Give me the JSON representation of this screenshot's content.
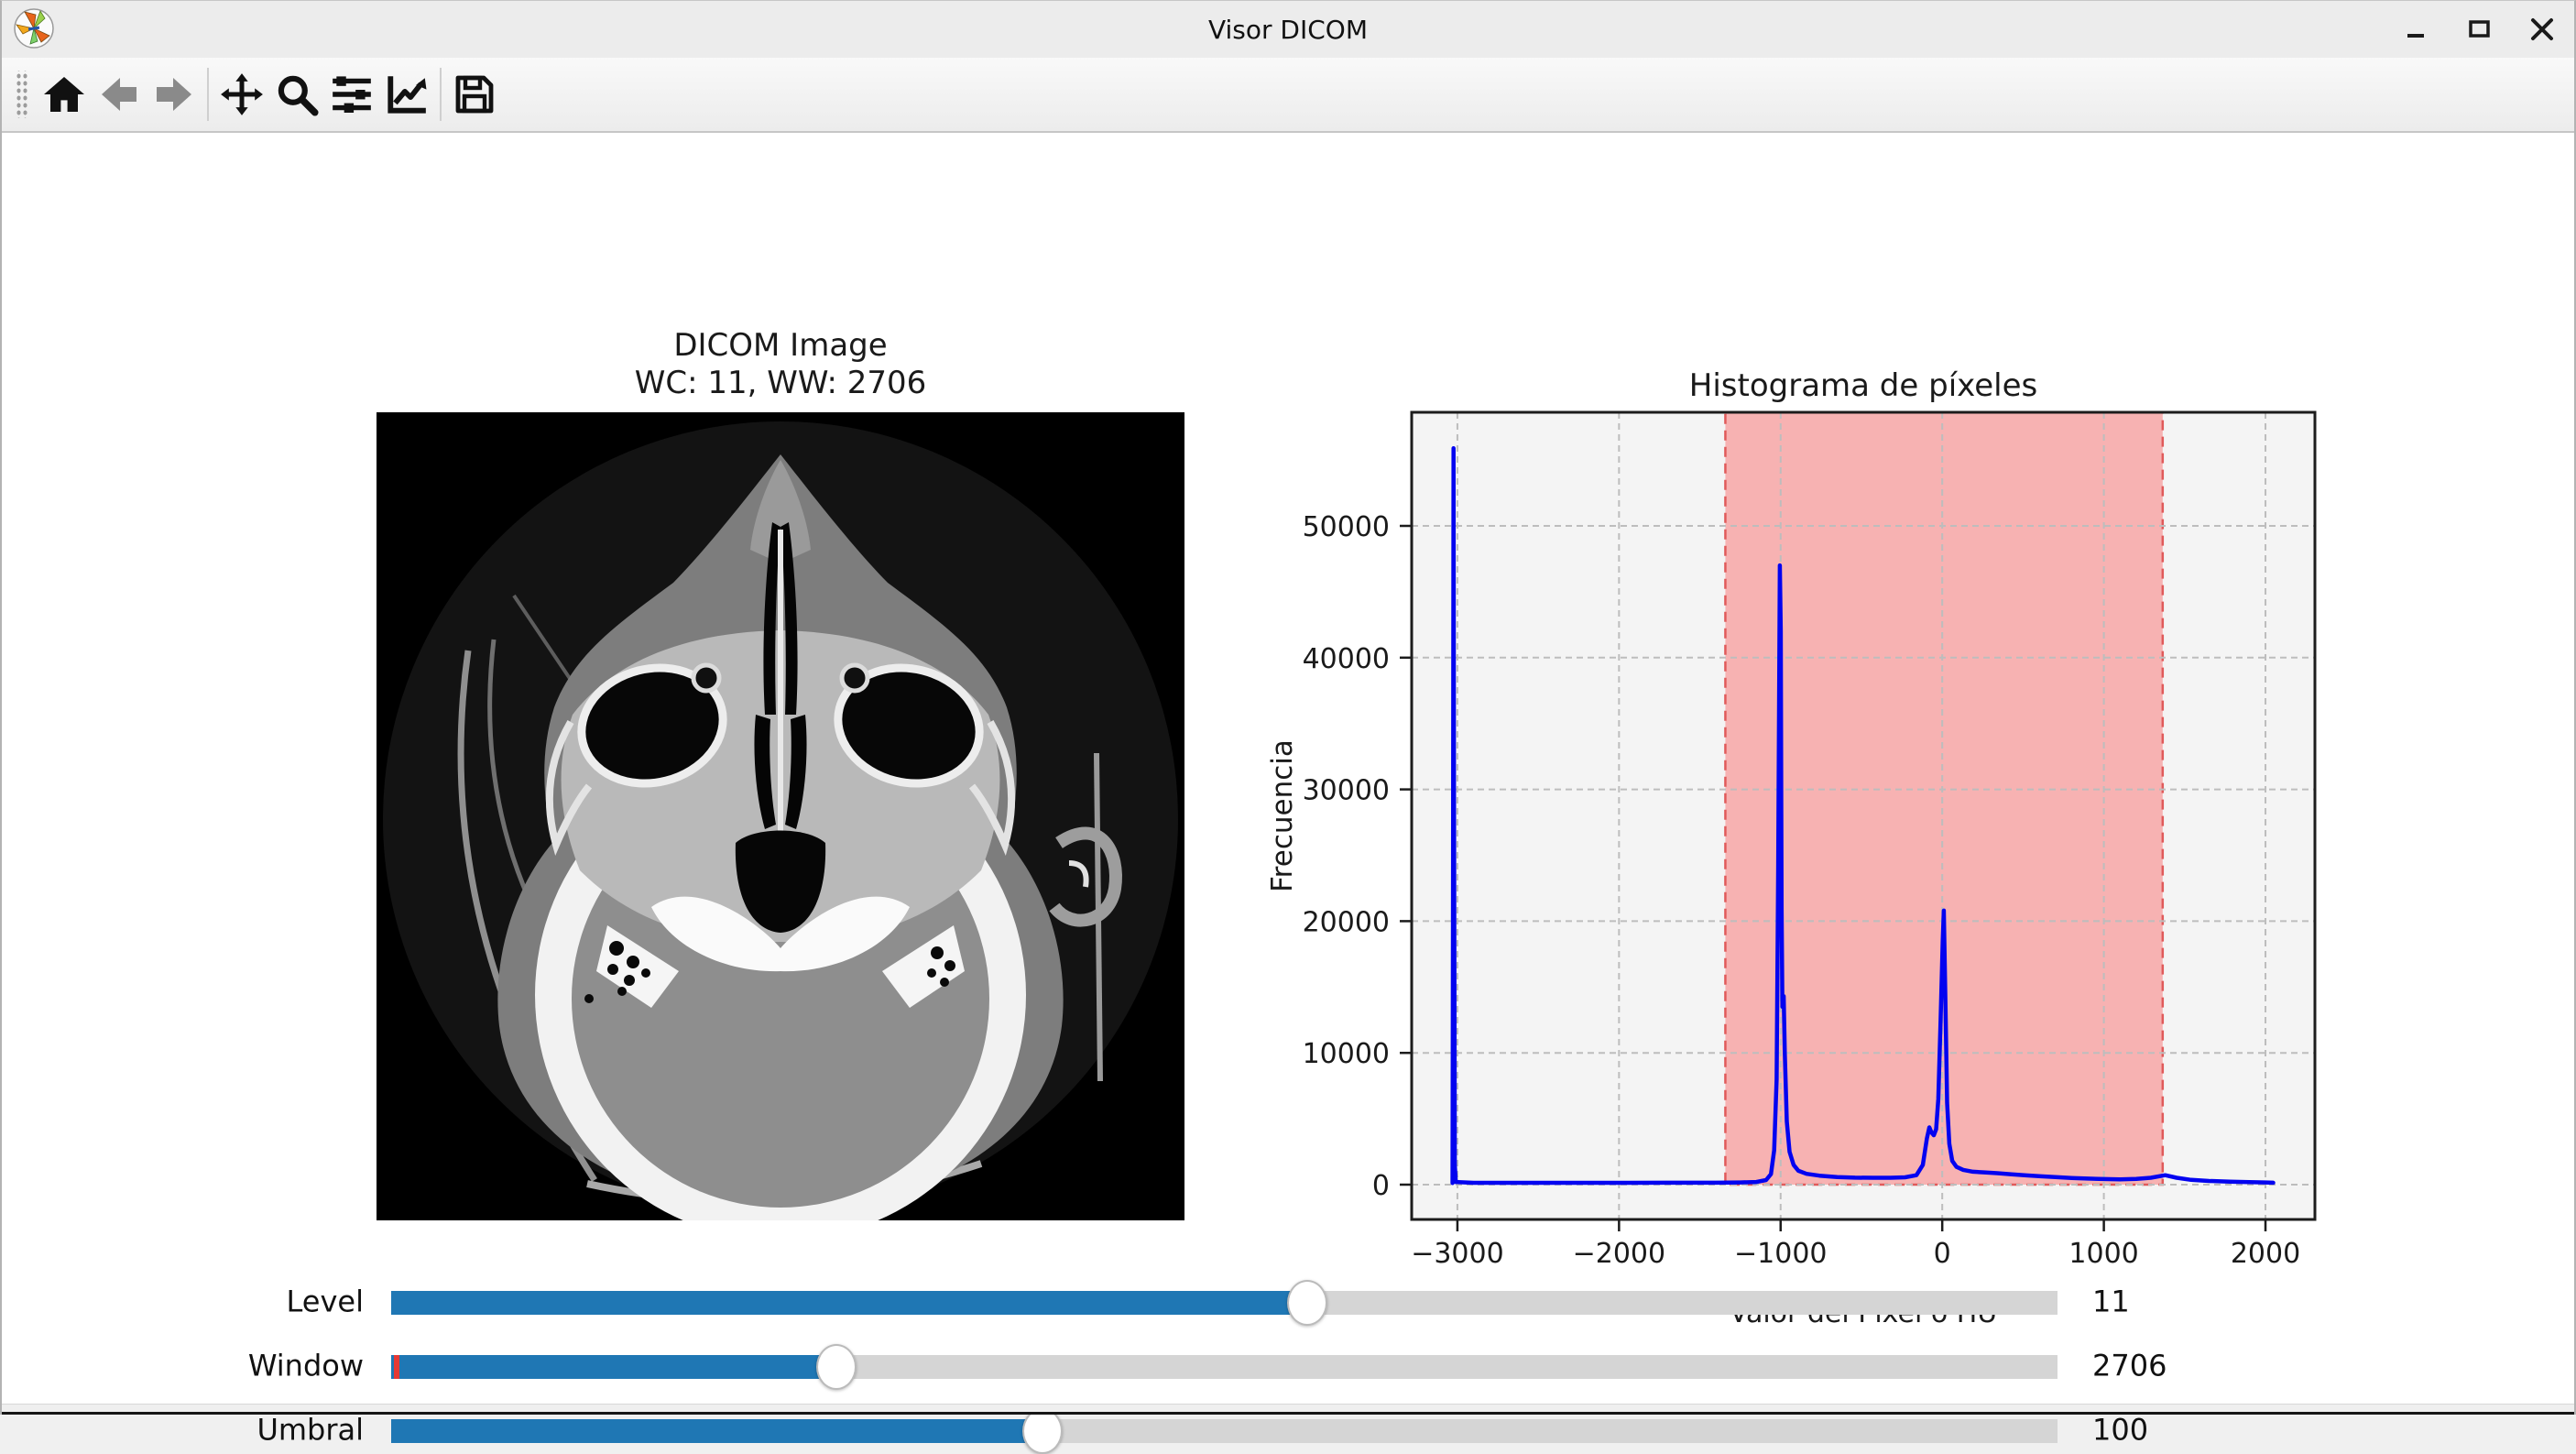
{
  "window": {
    "title": "Visor DICOM",
    "controls": [
      "minimize",
      "maximize",
      "close"
    ]
  },
  "toolbar": {
    "buttons": [
      {
        "name": "home",
        "enabled": true
      },
      {
        "name": "back",
        "enabled": false
      },
      {
        "name": "forward",
        "enabled": false
      },
      {
        "name": "pan",
        "enabled": true
      },
      {
        "name": "zoom",
        "enabled": true
      },
      {
        "name": "configure-subplots",
        "enabled": true
      },
      {
        "name": "edit-axes",
        "enabled": true
      },
      {
        "name": "save",
        "enabled": true
      }
    ]
  },
  "dicom_panel": {
    "title_line1": "DICOM Image",
    "title_line2": "WC: 11, WW: 2706"
  },
  "chart_data": {
    "type": "line",
    "title": "Histograma de píxeles",
    "xlabel": "Valor del Píxel o HU",
    "ylabel": "Frecuencia",
    "xlim": [
      -3283,
      2306
    ],
    "ylim": [
      -2642,
      58623
    ],
    "xticks": [
      -3000,
      -2000,
      -1000,
      0,
      1000,
      2000
    ],
    "xtick_labels": [
      "−3000",
      "−2000",
      "−1000",
      "0",
      "1000",
      "2000"
    ],
    "yticks": [
      0,
      10000,
      20000,
      30000,
      40000,
      50000
    ],
    "ytick_labels": [
      "0",
      "10000",
      "20000",
      "30000",
      "40000",
      "50000"
    ],
    "grid": true,
    "legend": "none",
    "line_color": "#0303f0",
    "plot_bg": "#f4f4f4",
    "highlight_span": {
      "x_from": -1342,
      "x_to": 1364,
      "y_from": 0,
      "fill": "rgba(255,40,40,0.32)",
      "edge": "#e05a5a"
    },
    "series": [
      {
        "name": "pixel_histogram",
        "points": [
          [
            -3030,
            120
          ],
          [
            -3027,
            25000
          ],
          [
            -3024,
            55900
          ],
          [
            -3021,
            30000
          ],
          [
            -3016,
            1500
          ],
          [
            -3010,
            200
          ],
          [
            -2900,
            140
          ],
          [
            -2600,
            140
          ],
          [
            -2300,
            140
          ],
          [
            -2000,
            140
          ],
          [
            -1700,
            145
          ],
          [
            -1400,
            150
          ],
          [
            -1250,
            165
          ],
          [
            -1150,
            200
          ],
          [
            -1090,
            350
          ],
          [
            -1060,
            800
          ],
          [
            -1040,
            2600
          ],
          [
            -1025,
            8000
          ],
          [
            -1015,
            24000
          ],
          [
            -1005,
            47000
          ],
          [
            -999,
            42000
          ],
          [
            -994,
            21000
          ],
          [
            -989,
            13500
          ],
          [
            -981,
            14300
          ],
          [
            -974,
            10000
          ],
          [
            -962,
            4800
          ],
          [
            -945,
            2500
          ],
          [
            -920,
            1500
          ],
          [
            -890,
            1050
          ],
          [
            -840,
            820
          ],
          [
            -760,
            680
          ],
          [
            -650,
            580
          ],
          [
            -540,
            530
          ],
          [
            -430,
            520
          ],
          [
            -320,
            520
          ],
          [
            -230,
            560
          ],
          [
            -160,
            720
          ],
          [
            -120,
            1500
          ],
          [
            -95,
            3500
          ],
          [
            -80,
            4350
          ],
          [
            -66,
            3950
          ],
          [
            -52,
            3750
          ],
          [
            -38,
            4200
          ],
          [
            -24,
            6500
          ],
          [
            -10,
            12500
          ],
          [
            3,
            18500
          ],
          [
            10,
            20800
          ],
          [
            19,
            14500
          ],
          [
            30,
            6200
          ],
          [
            44,
            3100
          ],
          [
            62,
            1800
          ],
          [
            88,
            1350
          ],
          [
            130,
            1120
          ],
          [
            190,
            980
          ],
          [
            260,
            930
          ],
          [
            340,
            870
          ],
          [
            430,
            780
          ],
          [
            520,
            700
          ],
          [
            610,
            630
          ],
          [
            700,
            570
          ],
          [
            800,
            510
          ],
          [
            900,
            460
          ],
          [
            1000,
            425
          ],
          [
            1100,
            405
          ],
          [
            1200,
            430
          ],
          [
            1290,
            520
          ],
          [
            1380,
            720
          ],
          [
            1450,
            520
          ],
          [
            1540,
            360
          ],
          [
            1650,
            280
          ],
          [
            1780,
            220
          ],
          [
            1900,
            185
          ],
          [
            2000,
            165
          ],
          [
            2048,
            150
          ]
        ]
      }
    ]
  },
  "sliders": [
    {
      "label": "Level",
      "value": "11",
      "fill_percent": 55.0,
      "init_marker": false
    },
    {
      "label": "Window",
      "value": "2706",
      "fill_percent": 26.7,
      "init_marker": true
    },
    {
      "label": "Umbral",
      "value": "100",
      "fill_percent": 39.1,
      "init_marker": false
    }
  ],
  "colors": {
    "accent_blue": "#1f77b4",
    "grid_gray": "#bdbdbd",
    "spine_dark": "#1c1c1c"
  }
}
